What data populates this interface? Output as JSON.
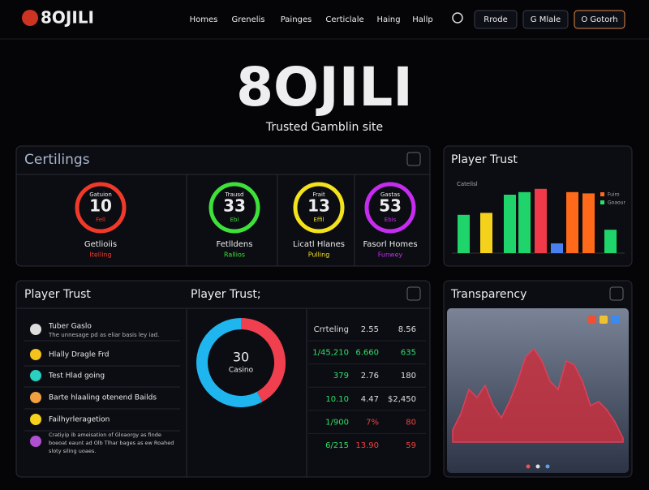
{
  "nav": {
    "brand": "8OJILI",
    "links": [
      "Homes",
      "Grenelis",
      "Painges",
      "Certiclale",
      "Haing",
      "Hallp"
    ],
    "buttons": [
      "Rrode",
      "G Mlale",
      "O Gotorh"
    ]
  },
  "hero": {
    "title": "8OJILI",
    "subtitle": "Trusted Gamblin site"
  },
  "certifications": {
    "title": "Certilings",
    "gauges": [
      {
        "top": "Gatuion",
        "value": "10",
        "sub": "Fell",
        "name": "Getlioiis",
        "status": "Itelling",
        "color": "#f0392a"
      },
      {
        "top": "Trausd",
        "value": "33",
        "sub": "Ebi",
        "name": "Fetlldens",
        "status": "Rallios",
        "color": "#3ee03a"
      },
      {
        "top": "Frait",
        "value": "13",
        "sub": "Effil",
        "name": "Licatl Hlanes",
        "status": "Pulling",
        "color": "#f4e21c"
      },
      {
        "top": "Gastas",
        "value": "53",
        "sub": "Ebis",
        "name": "Fasorl Homes",
        "status": "Funwey",
        "color": "#c62cf0"
      }
    ]
  },
  "trust_bars": {
    "title": "Player Trust",
    "label": "Catelisl",
    "legend": [
      {
        "name": "Fuiro",
        "color": "#ff6a1a"
      },
      {
        "name": "Goaour",
        "color": "#2ee06a"
      }
    ],
    "ylim": [
      0,
      100
    ],
    "values": [
      59,
      62,
      90,
      94,
      99,
      15,
      94,
      92,
      36
    ],
    "colors": [
      "#1fd46a",
      "#f4d21c",
      "#1fd46a",
      "#1fd46a",
      "#f03a4a",
      "#4a7ff0",
      "#ff6a1a",
      "#ff6a1a",
      "#1fd46a"
    ]
  },
  "trust_list": {
    "title": "Player Trust",
    "items": [
      {
        "name": "Tuber Gaslo",
        "desc": "The unnesage pd as eliar basis ley iad.",
        "color": "#ddd"
      },
      {
        "name": "Hlally Dragle Frd",
        "color": "#f4c21c"
      },
      {
        "name": "Test Hlad going",
        "color": "#2ad0c0"
      },
      {
        "name": "Barte hlaaling otenend Bailds",
        "color": "#f0a040"
      },
      {
        "name": "Failhyrleragetion",
        "color": "#f4d21c"
      }
    ],
    "note": [
      "Cratiyip ib ameisation of Gloaorgy as finde",
      "boeoat eaunt ad Olb Tlhar bages as ew Roahed",
      "sloty siling uoaes."
    ]
  },
  "donut": {
    "title": "Player Trust;",
    "value": "30",
    "label": "Casino",
    "values": [
      42,
      58
    ],
    "colors": [
      "#f0404f",
      "#1fb6f0"
    ]
  },
  "table": {
    "rows": [
      [
        "Crrteling",
        "2.55",
        "8.56"
      ],
      [
        "1/45,210",
        "6.660",
        "635"
      ],
      [
        "379",
        "2.76",
        "180"
      ],
      [
        "10.10",
        "4.47",
        "$2,450"
      ],
      [
        "1/900",
        "7%",
        "80"
      ],
      [
        "6/215",
        "13.90",
        "59"
      ]
    ]
  },
  "transparency": {
    "title": "Transparency",
    "ylim": [
      0,
      120
    ],
    "color": "#c8303f",
    "values": [
      15,
      35,
      65,
      55,
      70,
      45,
      30,
      50,
      75,
      105,
      115,
      100,
      75,
      65,
      100,
      95,
      75,
      45,
      50,
      40,
      25,
      5
    ]
  }
}
